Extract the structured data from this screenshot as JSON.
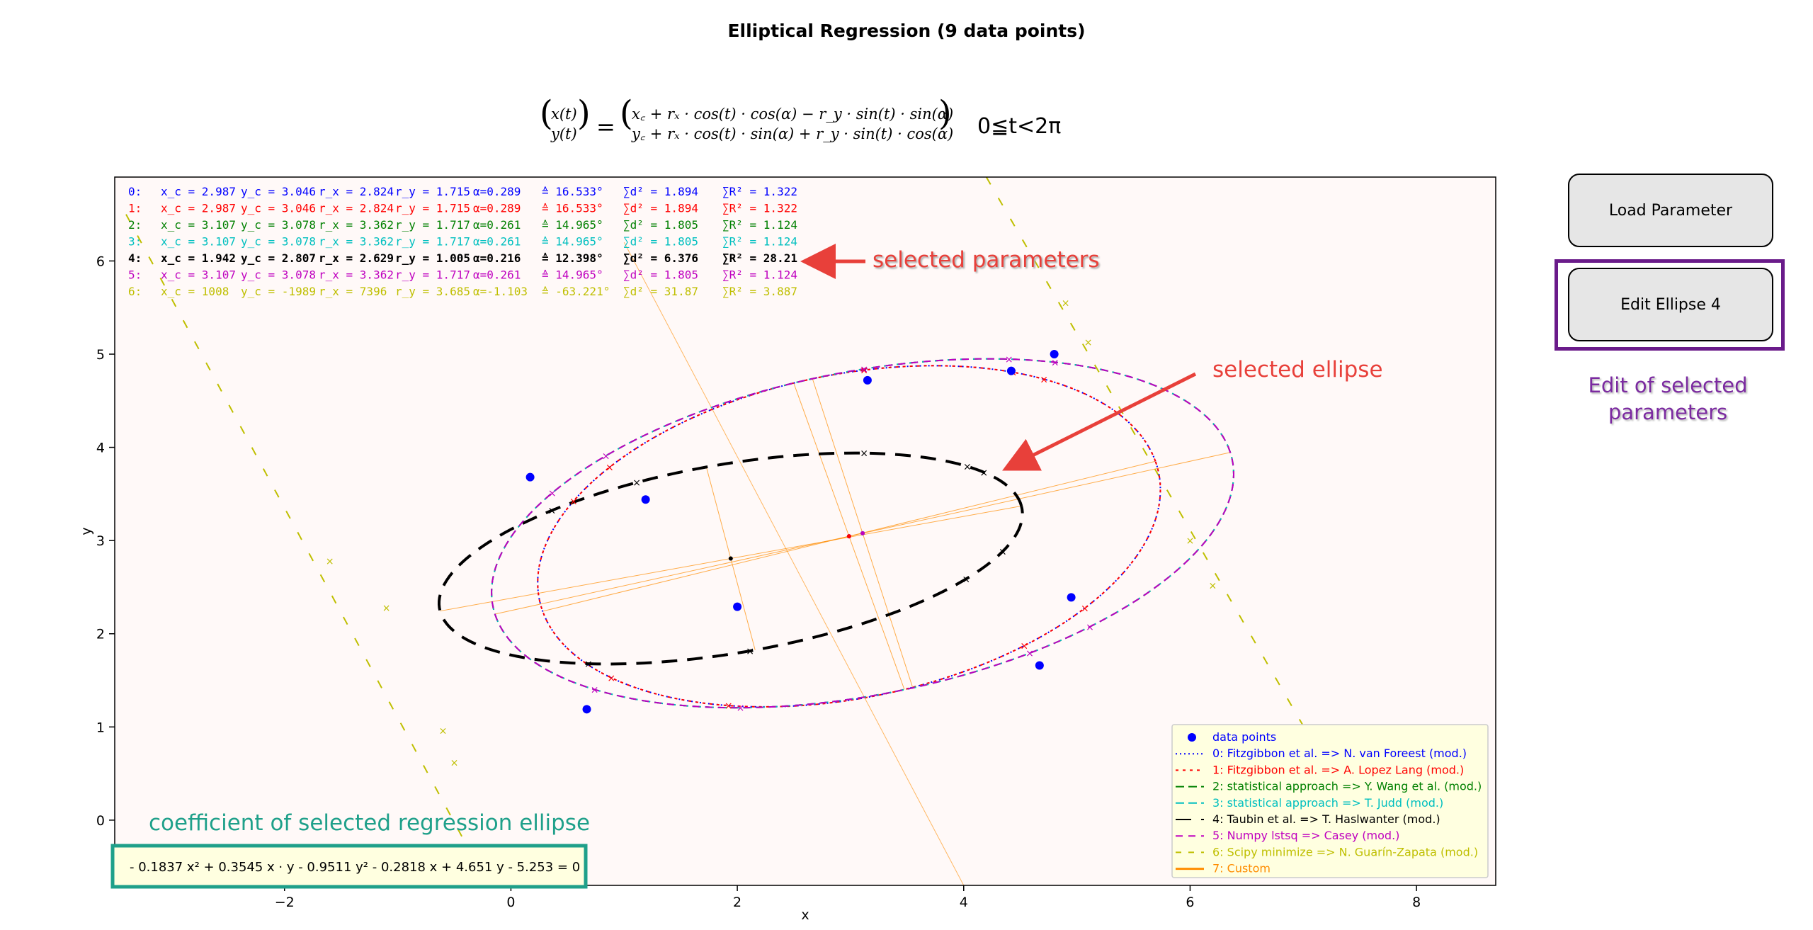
{
  "figure": {
    "title": "Elliptical Regression (9 data points)",
    "formula_range": "0≦t<2π"
  },
  "buttons": {
    "load": "Load Parameter",
    "edit": "Edit Ellipse 4"
  },
  "annotations": {
    "selected_parameters": "selected parameters",
    "selected_ellipse": "selected ellipse",
    "edit_selected": "Edit of selected parameters",
    "coefficient_title": "coefficient of selected regression ellipse",
    "coefficient_equation": "- 0.1837 x² + 0.3545 x · y - 0.9511 y² - 0.2818 x + 4.651 y - 5.253  =  0"
  },
  "colors": {
    "c0": "#0000ff",
    "c1": "#ff0000",
    "c2": "#008000",
    "c3": "#00bfbf",
    "c4": "#000000",
    "c5": "#bf00bf",
    "c6": "#bfbf00",
    "c7": "#ff8c00",
    "annot_red": "#e8403a",
    "annot_purple": "#6a1b8a",
    "annot_teal": "#1fa08a",
    "plot_bg": "#fff9f8",
    "legend_bg": "#ffffe0"
  },
  "chart_data": {
    "type": "scatter",
    "title": "",
    "xlabel": "x",
    "ylabel": "y",
    "xlim": [
      -3.5,
      8.7
    ],
    "ylim": [
      -0.7,
      6.9
    ],
    "x_ticks": [
      -2,
      0,
      2,
      4,
      6,
      8
    ],
    "x_tick_labels": [
      "−2",
      "0",
      "2",
      "4",
      "6",
      "8"
    ],
    "y_ticks": [
      0,
      1,
      2,
      3,
      4,
      5,
      6
    ],
    "y_tick_labels": [
      "0",
      "1",
      "2",
      "3",
      "4",
      "5",
      "6"
    ],
    "data_points": [
      {
        "x": 0.17,
        "y": 3.68
      },
      {
        "x": 1.19,
        "y": 3.44
      },
      {
        "x": 0.67,
        "y": 1.19
      },
      {
        "x": 2.0,
        "y": 2.29
      },
      {
        "x": 3.15,
        "y": 4.72
      },
      {
        "x": 4.42,
        "y": 4.82
      },
      {
        "x": 4.8,
        "y": 5.0
      },
      {
        "x": 4.95,
        "y": 2.39
      },
      {
        "x": 4.67,
        "y": 1.66
      }
    ],
    "ellipses": [
      {
        "id": 0,
        "xc": 2.987,
        "yc": 3.046,
        "rx": 2.824,
        "ry": 1.715,
        "alpha": 0.289
      },
      {
        "id": 1,
        "xc": 2.987,
        "yc": 3.046,
        "rx": 2.824,
        "ry": 1.715,
        "alpha": 0.289
      },
      {
        "id": 2,
        "xc": 3.107,
        "yc": 3.078,
        "rx": 3.362,
        "ry": 1.717,
        "alpha": 0.261
      },
      {
        "id": 3,
        "xc": 3.107,
        "yc": 3.078,
        "rx": 3.362,
        "ry": 1.717,
        "alpha": 0.261
      },
      {
        "id": 4,
        "xc": 1.942,
        "yc": 2.807,
        "rx": 2.629,
        "ry": 1.005,
        "alpha": 0.216
      },
      {
        "id": 5,
        "xc": 3.107,
        "yc": 3.078,
        "rx": 3.362,
        "ry": 1.717,
        "alpha": 0.261
      }
    ],
    "parameter_rows": [
      {
        "idx": "0:",
        "xc": "x_c = 2.987",
        "yc": "y_c = 3.046",
        "rx": "r_x = 2.824",
        "ry": "r_y = 1.715",
        "alpha": "α=0.289",
        "deg": "≙ 16.533°",
        "d2": "∑d² = 1.894",
        "r2": "∑R² = 1.322",
        "bold": false
      },
      {
        "idx": "1:",
        "xc": "x_c = 2.987",
        "yc": "y_c = 3.046",
        "rx": "r_x = 2.824",
        "ry": "r_y = 1.715",
        "alpha": "α=0.289",
        "deg": "≙ 16.533°",
        "d2": "∑d² = 1.894",
        "r2": "∑R² = 1.322",
        "bold": false
      },
      {
        "idx": "2:",
        "xc": "x_c = 3.107",
        "yc": "y_c = 3.078",
        "rx": "r_x = 3.362",
        "ry": "r_y = 1.717",
        "alpha": "α=0.261",
        "deg": "≙ 14.965°",
        "d2": "∑d² = 1.805",
        "r2": "∑R² = 1.124",
        "bold": false
      },
      {
        "idx": "3:",
        "xc": "x_c = 3.107",
        "yc": "y_c = 3.078",
        "rx": "r_x = 3.362",
        "ry": "r_y = 1.717",
        "alpha": "α=0.261",
        "deg": "≙ 14.965°",
        "d2": "∑d² = 1.805",
        "r2": "∑R² = 1.124",
        "bold": false
      },
      {
        "idx": "4:",
        "xc": "x_c = 1.942",
        "yc": "y_c = 2.807",
        "rx": "r_x = 2.629",
        "ry": "r_y = 1.005",
        "alpha": "α=0.216",
        "deg": "≙ 12.398°",
        "d2": "∑d² = 6.376",
        "r2": "∑R² = 28.21",
        "bold": true
      },
      {
        "idx": "5:",
        "xc": "x_c = 3.107",
        "yc": "y_c = 3.078",
        "rx": "r_x = 3.362",
        "ry": "r_y = 1.717",
        "alpha": "α=0.261",
        "deg": "≙ 14.965°",
        "d2": "∑d² = 1.805",
        "r2": "∑R² = 1.124",
        "bold": false
      },
      {
        "idx": "6:",
        "xc": "x_c = 1008",
        "yc": "y_c = -1989",
        "rx": "r_x = 7396",
        "ry": "r_y = 3.685",
        "alpha": "α=-1.103",
        "deg": "≙ -63.221°",
        "d2": "∑d² = 31.87",
        "r2": "∑R² = 3.887",
        "bold": false
      }
    ],
    "legend": [
      {
        "marker": "●",
        "label": "data points"
      },
      {
        "marker": "0:",
        "label": "Fitzgibbon et al. => N. van Foreest (mod.)"
      },
      {
        "marker": "1:",
        "label": "Fitzgibbon et al. =>  A. Lopez Lang (mod.)"
      },
      {
        "marker": "2:",
        "label": "statistical approach => Y. Wang et al. (mod.)"
      },
      {
        "marker": "3:",
        "label": "statistical approach => T. Judd (mod.)"
      },
      {
        "marker": "4:",
        "label": "Taubin et al. => T. Haslwanter (mod.)"
      },
      {
        "marker": "5:",
        "label": "Numpy lstsq => Casey (mod.)"
      },
      {
        "marker": "6:",
        "label": "Scipy minimize => N. Guarín-Zapata (mod.)"
      },
      {
        "marker": "7:",
        "label": "Custom"
      }
    ],
    "legend_placement": "lower-right",
    "grid": false
  }
}
